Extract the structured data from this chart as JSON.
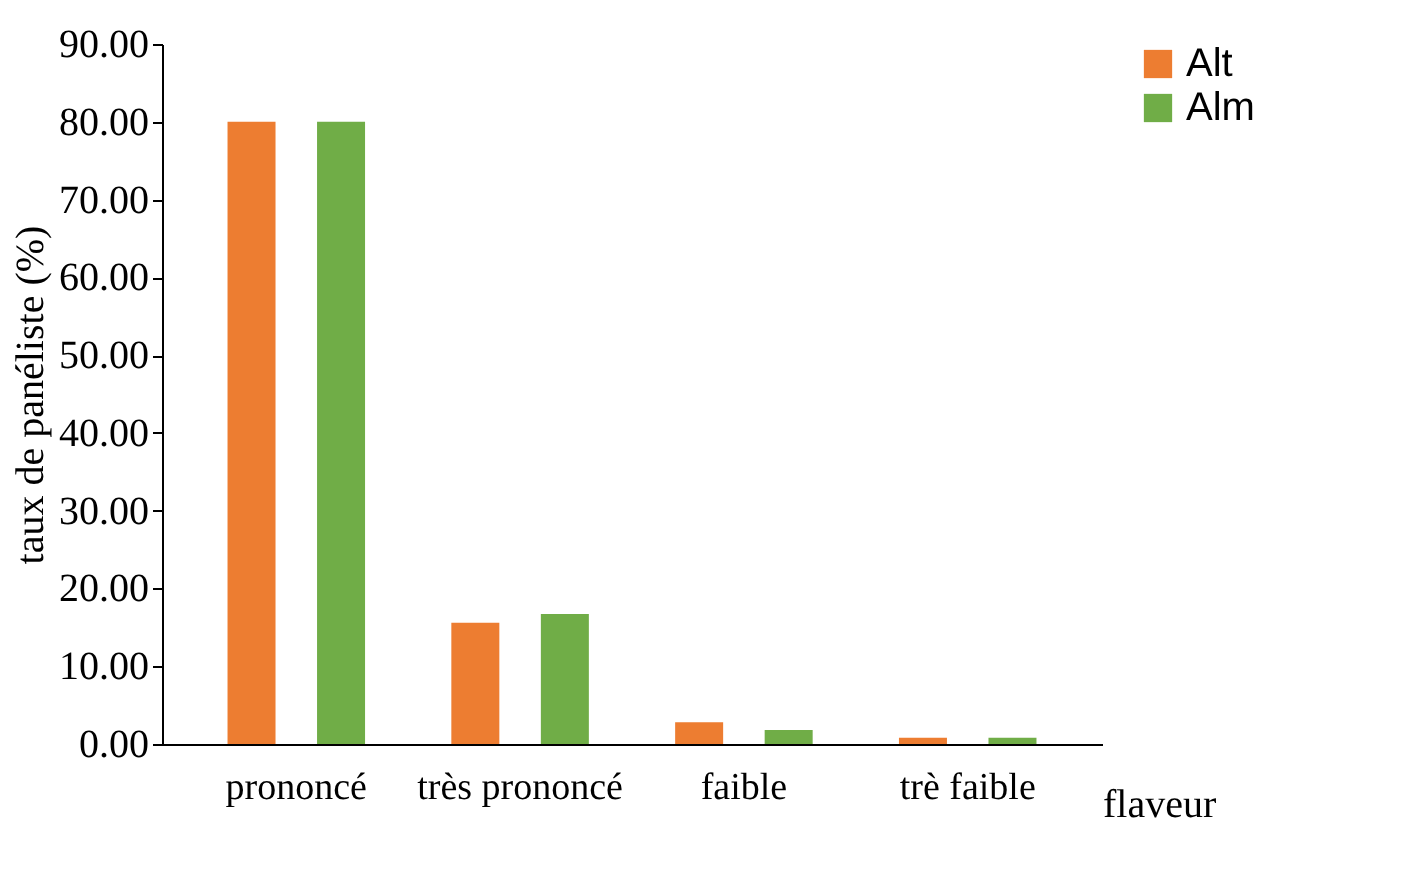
{
  "chart_data": {
    "type": "bar",
    "categories": [
      "prononcé",
      "très prononcé",
      "faible",
      "trè faible"
    ],
    "series": [
      {
        "name": "Alt",
        "color": "#ed7d31",
        "values": [
          80,
          15.6,
          2.8,
          0.8
        ]
      },
      {
        "name": "Alm",
        "color": "#70ad47",
        "values": [
          80,
          16.7,
          1.8,
          0.8
        ]
      }
    ],
    "xlabel": "flaveur",
    "ylabel": "taux de panéliste (%)",
    "ylim": [
      0,
      90
    ],
    "yticks": [
      {
        "value": 0,
        "label": "0.00"
      },
      {
        "value": 10,
        "label": "10.00"
      },
      {
        "value": 20,
        "label": "20.00"
      },
      {
        "value": 30,
        "label": "30.00"
      },
      {
        "value": 40,
        "label": "40.00"
      },
      {
        "value": 50,
        "label": "50.00"
      },
      {
        "value": 60,
        "label": "60.00"
      },
      {
        "value": 70,
        "label": "70.00"
      },
      {
        "value": 80,
        "label": "80.00"
      },
      {
        "value": 90,
        "label": "90.00"
      }
    ],
    "grid": false,
    "legend": "right"
  }
}
